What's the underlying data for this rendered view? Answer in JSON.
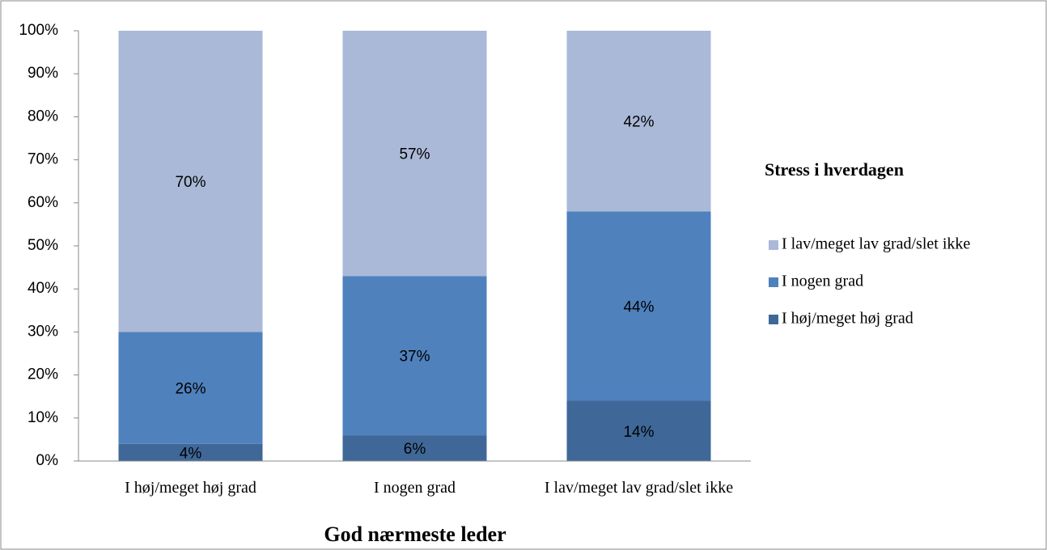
{
  "chart_data": {
    "type": "stacked_bar",
    "categories": [
      "I høj/meget høj grad",
      "I nogen grad",
      "I lav/meget lav grad/slet ikke"
    ],
    "series": [
      {
        "name": "I høj/meget høj grad",
        "color": "#3f6898",
        "values": [
          4,
          6,
          14
        ],
        "value_labels": [
          "4%",
          "6%",
          "14%"
        ]
      },
      {
        "name": "I nogen grad",
        "color": "#4f81bd",
        "values": [
          26,
          37,
          44
        ],
        "value_labels": [
          "26%",
          "37%",
          "44%"
        ]
      },
      {
        "name": "I lav/meget lav grad/slet ikke",
        "color": "#aab9d8",
        "values": [
          70,
          57,
          42
        ],
        "value_labels": [
          "70%",
          "57%",
          "42%"
        ]
      }
    ],
    "xlabel": "God nærmeste leder",
    "legend_title": "Stress i hverdagen",
    "legend": "right",
    "ylim": [
      0,
      100
    ],
    "yticks": [
      {
        "value": 0,
        "label": "0%"
      },
      {
        "value": 10,
        "label": "10%"
      },
      {
        "value": 20,
        "label": "20%"
      },
      {
        "value": 30,
        "label": "30%"
      },
      {
        "value": 40,
        "label": "40%"
      },
      {
        "value": 50,
        "label": "50%"
      },
      {
        "value": 60,
        "label": "60%"
      },
      {
        "value": 70,
        "label": "70%"
      },
      {
        "value": 80,
        "label": "80%"
      },
      {
        "value": 90,
        "label": "90%"
      },
      {
        "value": 100,
        "label": "100%"
      }
    ],
    "grid": false
  }
}
